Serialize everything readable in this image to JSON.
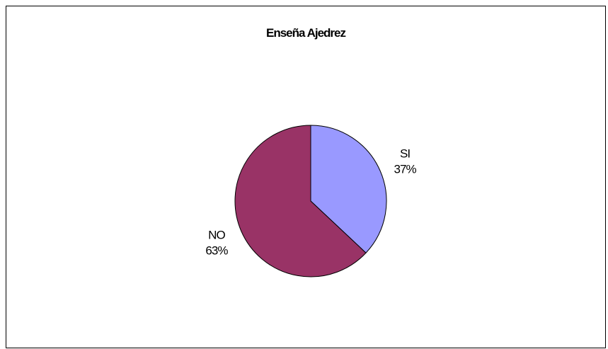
{
  "chart_data": {
    "type": "pie",
    "title": "Enseña Ajedrez",
    "slices": [
      {
        "label": "SI",
        "value": 37,
        "value_label": "37%",
        "color": "#9999ff"
      },
      {
        "label": "NO",
        "value": 63,
        "value_label": "63%",
        "color": "#993366"
      }
    ],
    "start": "12 o'clock",
    "direction": "clockwise",
    "border_color": "#000000",
    "legend": "none"
  }
}
